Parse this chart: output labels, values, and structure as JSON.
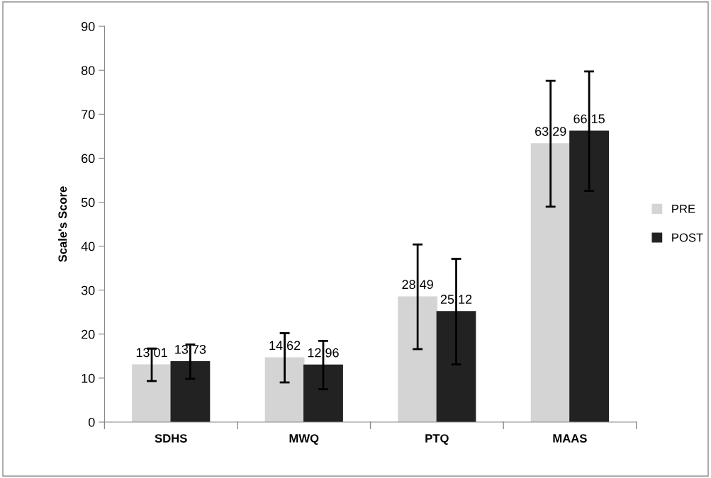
{
  "chart_data": {
    "type": "bar",
    "ylabel": "Scale's Score",
    "categories": [
      "SDHS",
      "MWQ",
      "PTQ",
      "MAAS"
    ],
    "series": [
      {
        "name": "PRE",
        "color": "#d4d4d4",
        "values": [
          13.01,
          14.62,
          28.49,
          63.29
        ],
        "errors": [
          3.7,
          5.6,
          11.9,
          14.3
        ]
      },
      {
        "name": "POST",
        "color": "#222222",
        "values": [
          13.73,
          12.96,
          25.12,
          66.15
        ],
        "errors": [
          3.9,
          5.5,
          12.0,
          13.6
        ]
      }
    ],
    "ylim": [
      0,
      90
    ],
    "yticks": [
      0,
      10,
      20,
      30,
      40,
      50,
      60,
      70,
      80,
      90
    ],
    "data_labels": true,
    "legend": "right",
    "grid": false
  }
}
